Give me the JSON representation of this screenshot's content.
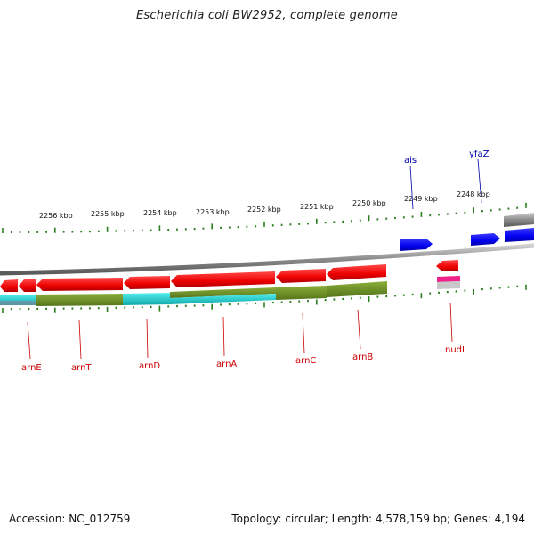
{
  "title": "Escherichia coli BW2952, complete genome",
  "footer": {
    "accession": "Accession: NC_012759",
    "summary": "Topology: circular; Length: 4,578,159 bp; Genes: 4,194"
  },
  "scale": {
    "labels": [
      "2256 kbp",
      "2255 kbp",
      "2254 kbp",
      "2253 kbp",
      "2252 kbp",
      "2251 kbp",
      "2250 kbp",
      "2249 kbp",
      "2248 kbp"
    ],
    "tick_color": "#2a7d1e"
  },
  "genes": [
    {
      "name": "arnE",
      "color": "#cc0000"
    },
    {
      "name": "arnT",
      "color": "#cc0000"
    },
    {
      "name": "arnD",
      "color": "#cc0000"
    },
    {
      "name": "arnA",
      "color": "#cc0000"
    },
    {
      "name": "arnC",
      "color": "#cc0000"
    },
    {
      "name": "arnB",
      "color": "#cc0000"
    },
    {
      "name": "nudI",
      "color": "#cc0000"
    },
    {
      "name": "ais",
      "color": "#0000aa"
    },
    {
      "name": "yfaZ",
      "color": "#0000aa"
    }
  ],
  "colors": {
    "forward_gene": "#0000ee",
    "reverse_gene": "#ee0000",
    "backbone": "#8a8a8a",
    "cog_olive": "#6b8e23",
    "cog_cyan": "#22cccc",
    "cog_pink": "#ee2288"
  }
}
